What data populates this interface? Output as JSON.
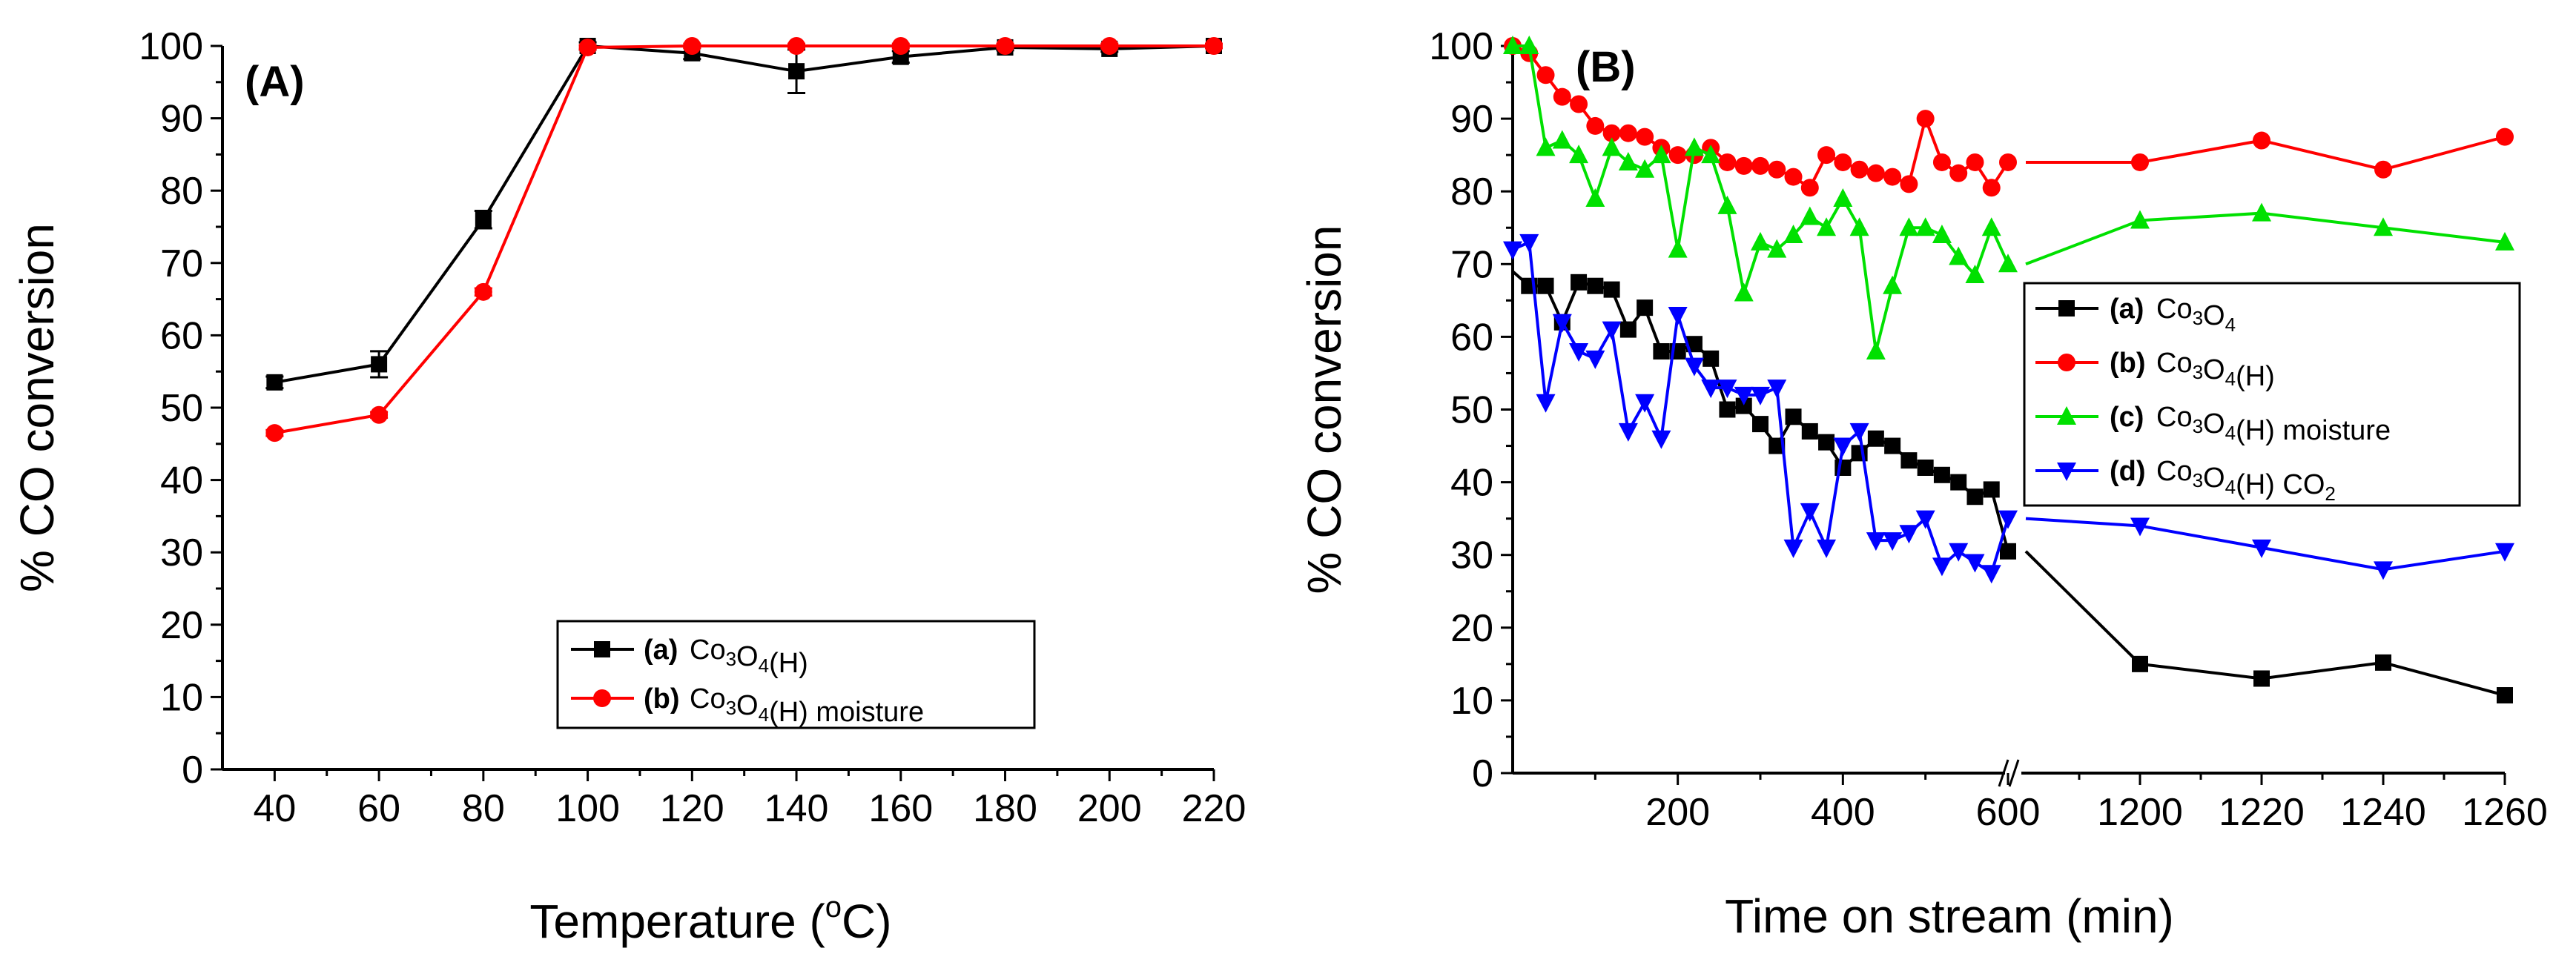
{
  "chart_data": [
    {
      "panel": "(A)",
      "type": "line",
      "xlabel": "Temperature (°C)",
      "xlabel_parts": {
        "pre": "Temperature (",
        "sup": "o",
        "post": "C)"
      },
      "ylabel": "% CO conversion",
      "xlim": [
        30,
        220
      ],
      "ylim": [
        0,
        100
      ],
      "xticks": [
        40,
        60,
        80,
        100,
        120,
        140,
        160,
        180,
        200,
        220
      ],
      "yticks": [
        0,
        10,
        20,
        30,
        40,
        50,
        60,
        70,
        80,
        90,
        100
      ],
      "legend_position": "bottom-right",
      "series": [
        {
          "id": "a",
          "name": "Co3O4(H)",
          "label_prefix": "(a)",
          "formula": [
            [
              "Co",
              ""
            ],
            [
              "3",
              "sub"
            ],
            [
              "O",
              ""
            ],
            [
              "4",
              "sub"
            ],
            [
              "(H)",
              ""
            ]
          ],
          "color": "#000000",
          "marker": "square",
          "x": [
            40,
            60,
            80,
            100,
            120,
            140,
            160,
            180,
            200,
            220
          ],
          "y": [
            53.5,
            56,
            76,
            100,
            99,
            96.5,
            98.5,
            99.8,
            99.6,
            100
          ],
          "err": [
            0.8,
            1.8,
            1.2,
            0.5,
            0.8,
            3.0,
            0.8,
            0.4,
            0.4,
            0.3
          ]
        },
        {
          "id": "b",
          "name": "Co3O4(H) moisture",
          "label_prefix": "(b)",
          "formula": [
            [
              "Co",
              ""
            ],
            [
              "3",
              "sub"
            ],
            [
              "O",
              ""
            ],
            [
              "4",
              "sub"
            ],
            [
              "(H) moisture",
              ""
            ]
          ],
          "color": "#ff0000",
          "marker": "circle",
          "x": [
            40,
            60,
            80,
            100,
            120,
            140,
            160,
            180,
            200,
            220
          ],
          "y": [
            46.5,
            49,
            66,
            99.8,
            100,
            100,
            100,
            100,
            100,
            100
          ],
          "err": [
            0.4,
            0.4,
            0.5,
            0.3,
            0.3,
            0.3,
            0.3,
            0.3,
            0.3,
            0.3
          ]
        }
      ]
    },
    {
      "panel": "(B)",
      "type": "line",
      "xlabel": "Time on stream (min)",
      "ylabel": "% CO conversion",
      "axis_break": {
        "segment1": [
          0,
          600
        ],
        "segment2": [
          1180,
          1260
        ]
      },
      "xticks_segment1": [
        200,
        400,
        600
      ],
      "xticks_segment2": [
        1200,
        1220,
        1240,
        1260
      ],
      "ylim": [
        0,
        100
      ],
      "yticks": [
        0,
        10,
        20,
        30,
        40,
        50,
        60,
        70,
        80,
        90,
        100
      ],
      "legend_position": "center-right",
      "series": [
        {
          "id": "a",
          "name": "Co3O4",
          "label_prefix": "(a)",
          "formula": [
            [
              "Co",
              ""
            ],
            [
              "3",
              "sub"
            ],
            [
              "O",
              ""
            ],
            [
              "4",
              "sub"
            ]
          ],
          "color": "#000000",
          "marker": "square",
          "x": [
            0,
            20,
            40,
            60,
            80,
            100,
            120,
            140,
            160,
            180,
            200,
            220,
            240,
            260,
            280,
            300,
            320,
            340,
            360,
            380,
            400,
            420,
            440,
            460,
            480,
            500,
            520,
            540,
            560,
            580,
            600,
            1200,
            1220,
            1240,
            1260
          ],
          "y": [
            69,
            67,
            67,
            62,
            67.5,
            67,
            66.5,
            61,
            64,
            58,
            58,
            59,
            57,
            50,
            50.5,
            48,
            45,
            49,
            47,
            45.5,
            42,
            44,
            46,
            45,
            43,
            42,
            41,
            40,
            38,
            39,
            30.5,
            15,
            13,
            15.2,
            10.7
          ]
        },
        {
          "id": "b",
          "name": "Co3O4(H)",
          "label_prefix": "(b)",
          "formula": [
            [
              "Co",
              ""
            ],
            [
              "3",
              "sub"
            ],
            [
              "O",
              ""
            ],
            [
              "4",
              "sub"
            ],
            [
              "(H)",
              ""
            ]
          ],
          "color": "#ff0000",
          "marker": "circle",
          "x": [
            0,
            20,
            40,
            60,
            80,
            100,
            120,
            140,
            160,
            180,
            200,
            220,
            240,
            260,
            280,
            300,
            320,
            340,
            360,
            380,
            400,
            420,
            440,
            460,
            480,
            500,
            520,
            540,
            560,
            580,
            600,
            1200,
            1220,
            1240,
            1260
          ],
          "y": [
            100,
            99,
            96,
            93,
            92,
            89,
            88,
            88,
            87.5,
            86,
            85,
            85,
            86,
            84,
            83.5,
            83.5,
            83,
            82,
            80.5,
            85,
            84,
            83,
            82.5,
            82,
            81,
            90,
            84,
            82.5,
            84,
            80.5,
            84,
            84,
            87,
            83,
            87.5
          ]
        },
        {
          "id": "c",
          "name": "Co3O4(H) moisture",
          "label_prefix": "(c)",
          "formula": [
            [
              "Co",
              ""
            ],
            [
              "3",
              "sub"
            ],
            [
              "O",
              ""
            ],
            [
              "4",
              "sub"
            ],
            [
              "(H) moisture",
              ""
            ]
          ],
          "color": "#00e000",
          "marker": "triangle-up",
          "x": [
            0,
            20,
            40,
            60,
            80,
            100,
            120,
            140,
            160,
            180,
            200,
            220,
            240,
            260,
            280,
            300,
            320,
            340,
            360,
            380,
            400,
            420,
            440,
            460,
            480,
            500,
            520,
            540,
            560,
            580,
            600,
            1200,
            1220,
            1240,
            1260
          ],
          "y": [
            100,
            100,
            86,
            87,
            85,
            79,
            86,
            84,
            83,
            85,
            72,
            86,
            85,
            78,
            66,
            73,
            72,
            74,
            76.5,
            75,
            79,
            75,
            58,
            67,
            75,
            75,
            74,
            71,
            68.5,
            75,
            70,
            76,
            77,
            75,
            73
          ]
        },
        {
          "id": "d",
          "name": "Co3O4(H) CO2",
          "label_prefix": "(d)",
          "formula": [
            [
              "Co",
              ""
            ],
            [
              "3",
              "sub"
            ],
            [
              "O",
              ""
            ],
            [
              "4",
              "sub"
            ],
            [
              "(H) CO",
              ""
            ],
            [
              "2",
              "sub"
            ]
          ],
          "color": "#0000ff",
          "marker": "triangle-down",
          "x": [
            0,
            20,
            40,
            60,
            80,
            100,
            120,
            140,
            160,
            180,
            200,
            220,
            240,
            260,
            280,
            300,
            320,
            340,
            360,
            380,
            400,
            420,
            440,
            460,
            480,
            500,
            520,
            540,
            560,
            580,
            600,
            1200,
            1220,
            1240,
            1260
          ],
          "y": [
            72,
            73,
            51,
            62,
            58,
            57,
            61,
            47,
            51,
            46,
            63,
            56,
            53,
            53,
            52,
            52,
            53,
            31,
            36,
            31,
            45,
            47,
            32,
            32,
            33,
            35,
            28.5,
            30.5,
            29,
            27.5,
            35,
            34,
            31,
            28,
            30.5
          ]
        }
      ]
    }
  ]
}
